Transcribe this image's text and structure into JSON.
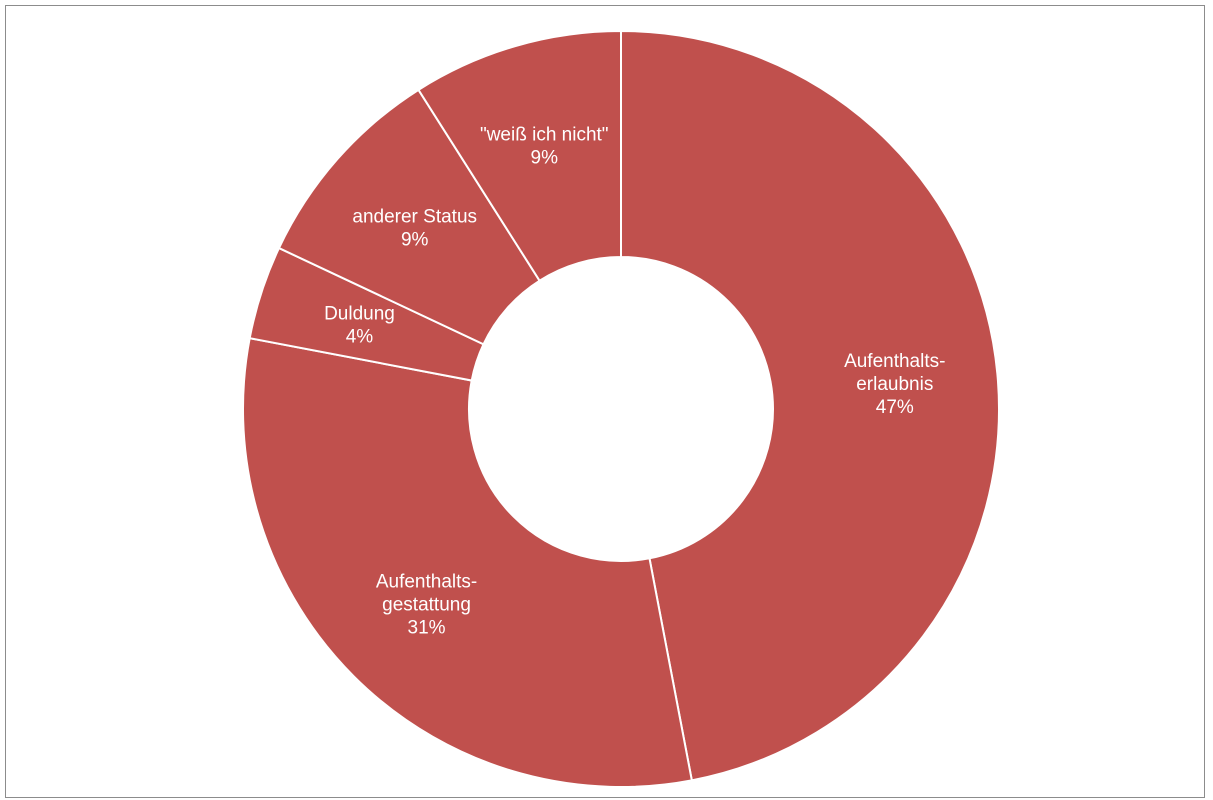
{
  "chart_data": {
    "type": "pie",
    "variant": "donut",
    "title": "",
    "colors": {
      "slice": "#C0504D",
      "separator": "#FFFFFF",
      "label": "#FFFFFF",
      "border": "#8C8C8C"
    },
    "slices": [
      {
        "label_lines": [
          "Aufenthalts-",
          "erlaubnis"
        ],
        "value": 47,
        "value_label": "47%"
      },
      {
        "label_lines": [
          "Aufenthalts-",
          "gestattung"
        ],
        "value": 31,
        "value_label": "31%"
      },
      {
        "label_lines": [
          "Duldung"
        ],
        "value": 4,
        "value_label": "4%"
      },
      {
        "label_lines": [
          "anderer Status"
        ],
        "value": 9,
        "value_label": "9%"
      },
      {
        "label_lines": [
          "\"weiß ich nicht\""
        ],
        "value": 9,
        "value_label": "9%"
      }
    ]
  }
}
